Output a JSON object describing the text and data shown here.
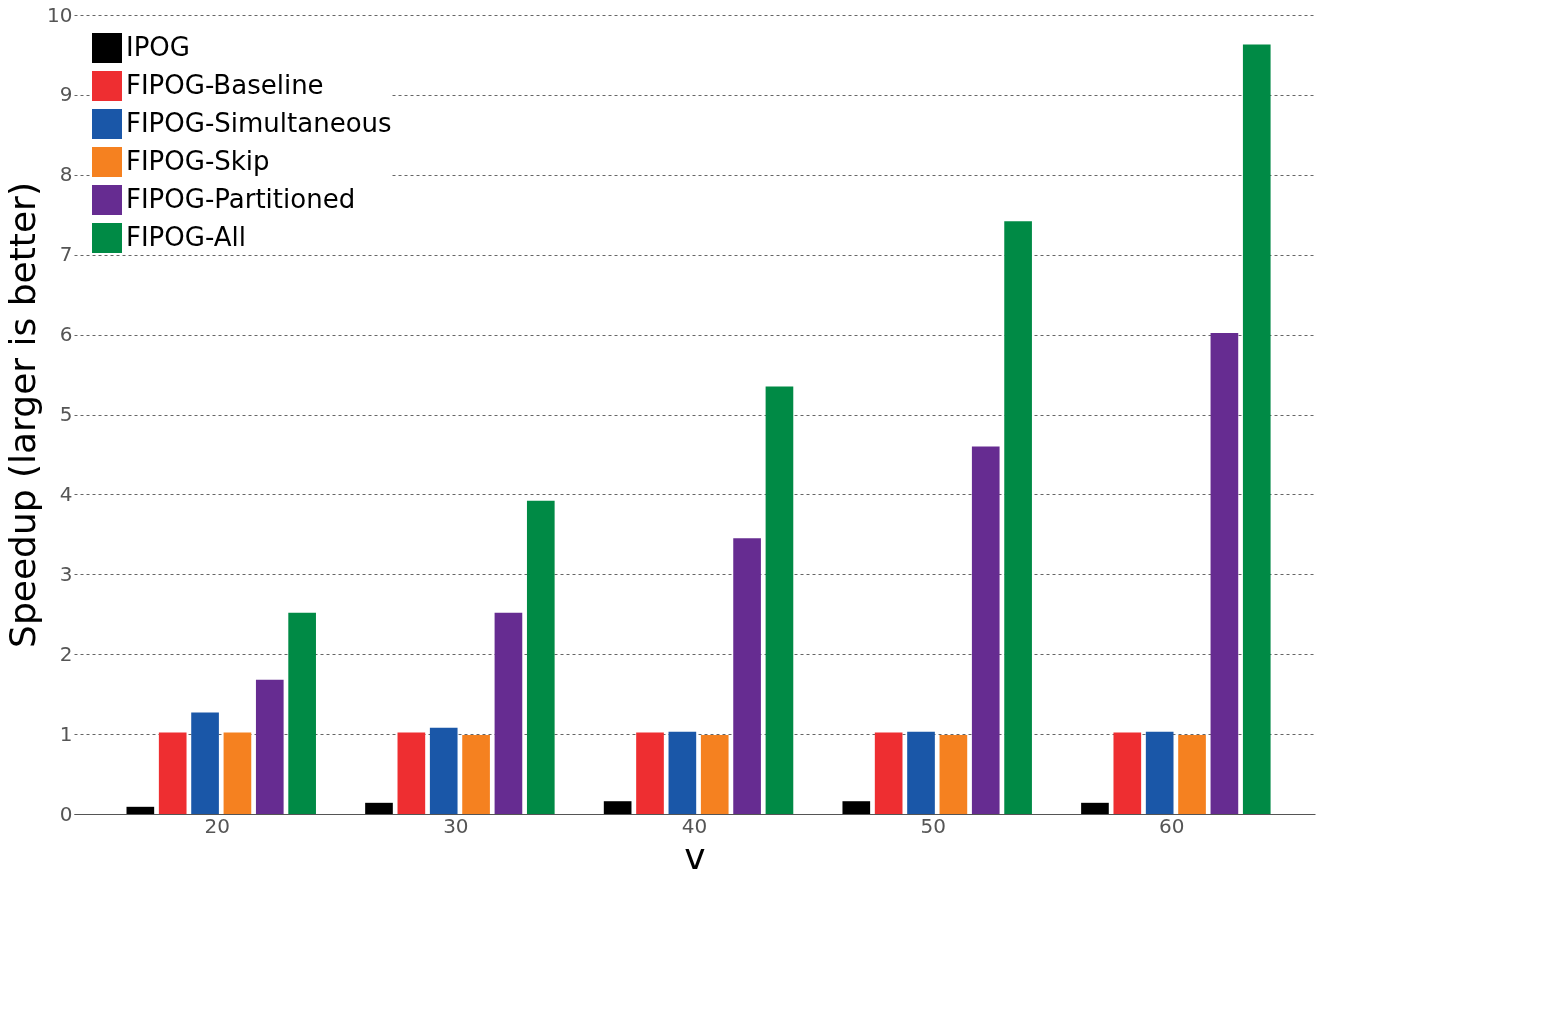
{
  "chart_data": {
    "type": "bar",
    "xlabel": "v",
    "ylabel": "Speedup (larger is better)",
    "categories": [
      "20",
      "30",
      "40",
      "50",
      "60"
    ],
    "series": [
      {
        "name": "IPOG",
        "color": "#000000",
        "values": [
          0.09,
          0.14,
          0.16,
          0.16,
          0.14
        ]
      },
      {
        "name": "FIPOG-Baseline",
        "color": "#ee2e31",
        "values": [
          1.02,
          1.02,
          1.02,
          1.02,
          1.02
        ]
      },
      {
        "name": "FIPOG-Simultaneous",
        "color": "#1a57a8",
        "values": [
          1.27,
          1.08,
          1.03,
          1.03,
          1.03
        ]
      },
      {
        "name": "FIPOG-Skip",
        "color": "#f58120",
        "values": [
          1.02,
          0.99,
          0.99,
          0.99,
          0.99
        ]
      },
      {
        "name": "FIPOG-Partitioned",
        "color": "#662c91",
        "values": [
          1.68,
          2.52,
          3.45,
          4.6,
          6.02
        ]
      },
      {
        "name": "FIPOG-All",
        "color": "#008a45",
        "values": [
          2.52,
          3.92,
          5.35,
          7.42,
          9.63
        ]
      }
    ],
    "ylim": [
      0,
      10
    ],
    "yticks": [
      0,
      1,
      2,
      3,
      4,
      5,
      6,
      7,
      8,
      9,
      10
    ],
    "grid": "y",
    "legend": "top left"
  }
}
